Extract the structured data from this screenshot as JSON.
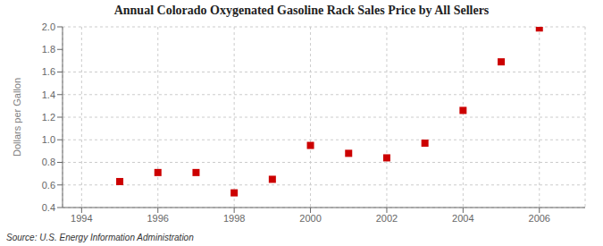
{
  "chart_data": {
    "type": "scatter",
    "title": "Annual Colorado Oxygenated Gasoline Rack Sales Price by All Sellers",
    "y_label": "Dollars per Gallon",
    "annotations": [
      "Source: U.S. Energy Information Administration"
    ],
    "x": [
      1995,
      1996,
      1997,
      1998,
      1999,
      2000,
      2001,
      2002,
      2003,
      2004,
      2005,
      2006
    ],
    "values": [
      0.63,
      0.71,
      0.71,
      0.53,
      0.65,
      0.95,
      0.88,
      0.84,
      0.97,
      1.26,
      1.69,
      1.99
    ],
    "color": "#cc0000",
    "marker": "square",
    "xlim": [
      1993.5,
      2007.2
    ],
    "ylim": [
      0.4,
      2.0
    ],
    "xticks": [
      1994,
      1996,
      1998,
      2000,
      2002,
      2004,
      2006
    ],
    "yticks": [
      0.4,
      0.6,
      0.8,
      {
        "value": 1.0,
        "label": "1.0"
      },
      1.2,
      1.4,
      1.6,
      1.8,
      {
        "value": 2.0,
        "label": "2.0"
      }
    ],
    "grid": true
  }
}
